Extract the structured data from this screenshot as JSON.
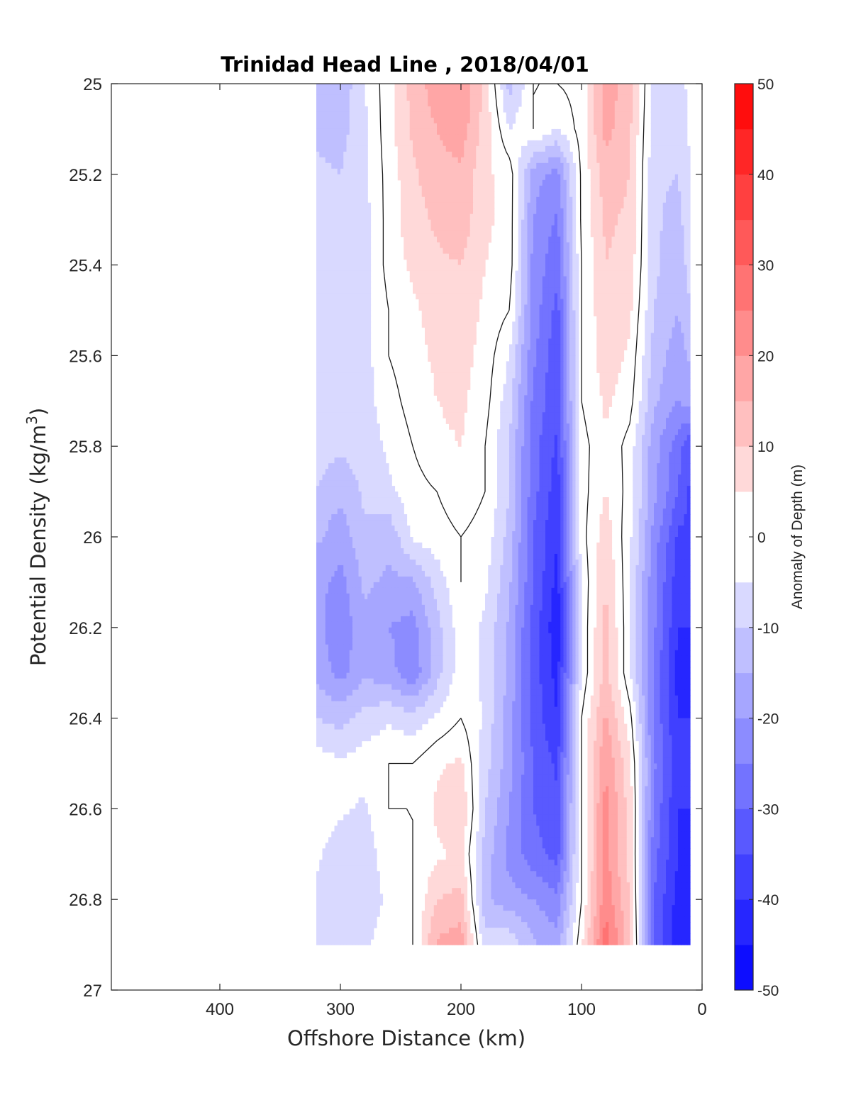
{
  "chart_data": {
    "type": "heatmap",
    "title": "Trinidad Head Line , 2018/04/01",
    "xlabel": "Offshore Distance (km)",
    "ylabel": "Potential Density (kg/m",
    "ylabel_sup": "3",
    "ylabel_tail": ")",
    "colorbar_label": "Anomaly of Depth (m)",
    "xlim": [
      490,
      0
    ],
    "x_reversed": true,
    "ylim": [
      25,
      27
    ],
    "y_reversed": true,
    "x_ticks": [
      400,
      300,
      200,
      100,
      0
    ],
    "x_tick_labels": [
      "400",
      "300",
      "200",
      "100",
      "0"
    ],
    "y_ticks": [
      25,
      25.2,
      25.4,
      25.6,
      25.8,
      26,
      26.2,
      26.4,
      26.6,
      26.8,
      27
    ],
    "y_tick_labels": [
      "25",
      "25.2",
      "25.4",
      "25.6",
      "25.8",
      "26",
      "26.2",
      "26.4",
      "26.6",
      "26.8",
      "27"
    ],
    "colorbar_range": [
      -50,
      50
    ],
    "colorbar_step": 5,
    "colorbar_ticks": [
      50,
      40,
      30,
      20,
      10,
      0,
      -10,
      -20,
      -30,
      -40,
      -50
    ],
    "colorbar_tick_labels": [
      "50",
      "40",
      "30",
      "20",
      "10",
      "0",
      "-10",
      "-20",
      "-30",
      "-40",
      "-50"
    ],
    "colormap": "blue-white-red",
    "colors": {
      "negative": "#0000ff",
      "zero": "#ffffff",
      "positive": "#ff0000",
      "contour": "#1a1a1a"
    },
    "grid": false,
    "data_extent": {
      "x": [
        320,
        10
      ],
      "y": [
        25,
        26.9
      ]
    },
    "grid_x": [
      320,
      300,
      280,
      260,
      240,
      220,
      200,
      180,
      160,
      140,
      120,
      100,
      80,
      60,
      40,
      20,
      10
    ],
    "grid_y": [
      25.0,
      25.1,
      25.2,
      25.3,
      25.4,
      25.5,
      25.6,
      25.7,
      25.8,
      25.9,
      26.0,
      26.1,
      26.2,
      26.3,
      26.4,
      26.5,
      26.6,
      26.7,
      26.8,
      26.9
    ],
    "anomaly_rows": [
      [
        -12,
        -14,
        -5,
        3,
        12,
        18,
        20,
        8,
        -12,
        0,
        0,
        2,
        18,
        12,
        -7,
        -8,
        -3
      ],
      [
        -11,
        -12,
        -6,
        3,
        11,
        15,
        18,
        8,
        -5,
        0,
        -5,
        2,
        17,
        11,
        -8,
        -9,
        -4
      ],
      [
        -9,
        -10,
        -6,
        2,
        9,
        13,
        14,
        6,
        3,
        -18,
        -22,
        1,
        13,
        10,
        -9,
        -10,
        -5
      ],
      [
        -9,
        -10,
        -7,
        2,
        8,
        11,
        13,
        6,
        3,
        -20,
        -26,
        1,
        11,
        9,
        -9,
        -12,
        -6
      ],
      [
        -8,
        -9,
        -7,
        2,
        6,
        9,
        10,
        5,
        3,
        -22,
        -28,
        0,
        10,
        8,
        -9,
        -13,
        -8
      ],
      [
        -8,
        -9,
        -7,
        0,
        4,
        7,
        8,
        4,
        0,
        -22,
        -32,
        0,
        9,
        6,
        -10,
        -15,
        -10
      ],
      [
        -7,
        -9,
        -7,
        0,
        3,
        6,
        7,
        3,
        -5,
        -24,
        -34,
        0,
        8,
        4,
        -12,
        -18,
        -14
      ],
      [
        -7,
        -8,
        -7,
        -2,
        2,
        5,
        6,
        2,
        -8,
        -26,
        -34,
        0,
        6,
        2,
        -14,
        -20,
        -18
      ],
      [
        -8,
        -9,
        -8,
        -4,
        0,
        4,
        5,
        0,
        -10,
        -28,
        -36,
        -2,
        4,
        -2,
        -18,
        -28,
        -34
      ],
      [
        -10,
        -14,
        -9,
        -6,
        -2,
        0,
        3,
        0,
        -10,
        -28,
        -38,
        -2,
        5,
        -2,
        -18,
        -30,
        -36
      ],
      [
        -14,
        -18,
        -11,
        -14,
        -4,
        -2,
        0,
        -2,
        -12,
        -30,
        -40,
        -2,
        8,
        -4,
        -22,
        -36,
        -36
      ],
      [
        -18,
        -22,
        -14,
        -16,
        -16,
        -8,
        0,
        -4,
        -14,
        -30,
        -42,
        -4,
        10,
        -4,
        -24,
        -38,
        -38
      ],
      [
        -18,
        -24,
        -16,
        -20,
        -22,
        -12,
        -2,
        -6,
        -16,
        -32,
        -44,
        -4,
        12,
        -4,
        -24,
        -40,
        -40
      ],
      [
        -16,
        -22,
        -16,
        -18,
        -24,
        -12,
        -2,
        -6,
        -16,
        -32,
        -42,
        -4,
        12,
        -4,
        -26,
        -42,
        -42
      ],
      [
        -10,
        -12,
        -8,
        -6,
        -8,
        -4,
        0,
        -6,
        -18,
        -32,
        -40,
        0,
        16,
        2,
        -26,
        -40,
        -40
      ],
      [
        -2,
        -4,
        -2,
        0,
        0,
        4,
        6,
        -8,
        -18,
        -30,
        -36,
        0,
        20,
        6,
        -24,
        -38,
        -40
      ],
      [
        -2,
        -4,
        -6,
        0,
        0,
        6,
        10,
        -10,
        -20,
        -30,
        -34,
        0,
        22,
        8,
        -26,
        -40,
        -40
      ],
      [
        -4,
        -8,
        -8,
        -2,
        0,
        4,
        6,
        -12,
        -22,
        -28,
        -32,
        0,
        22,
        8,
        -28,
        -40,
        -40
      ],
      [
        -6,
        -10,
        -8,
        -4,
        0,
        10,
        12,
        -14,
        -18,
        -20,
        -24,
        0,
        24,
        10,
        -30,
        -42,
        -42
      ],
      [
        -8,
        -10,
        -6,
        -2,
        0,
        16,
        18,
        -8,
        -6,
        -14,
        -18,
        4,
        28,
        12,
        -30,
        -44,
        -44
      ]
    ]
  }
}
